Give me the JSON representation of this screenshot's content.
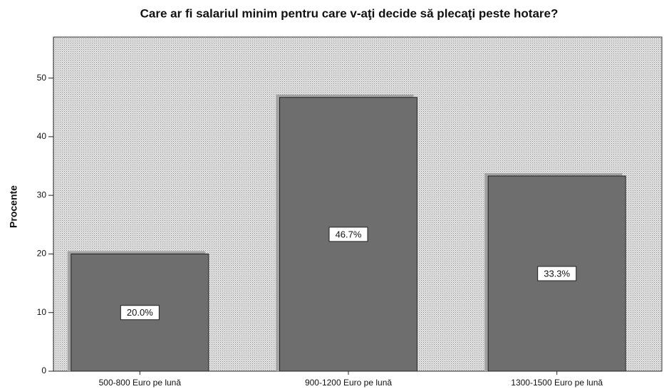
{
  "chart_data": {
    "type": "bar",
    "title": "Care ar fi salariul minim pentru care v-aţi decide să plecaţi peste hotare?",
    "ylabel": "Procente",
    "categories": [
      "500-800 Euro pe lună",
      "900-1200 Euro pe lună",
      "1300-1500 Euro pe lună"
    ],
    "values": [
      20.0,
      46.7,
      33.3
    ],
    "value_labels": [
      "20.0%",
      "46.7%",
      "33.3%"
    ],
    "color": "#6e6e6e",
    "ylim": [
      0,
      57
    ],
    "yticks": [
      0,
      10,
      20,
      30,
      40,
      50
    ],
    "grid": false
  }
}
